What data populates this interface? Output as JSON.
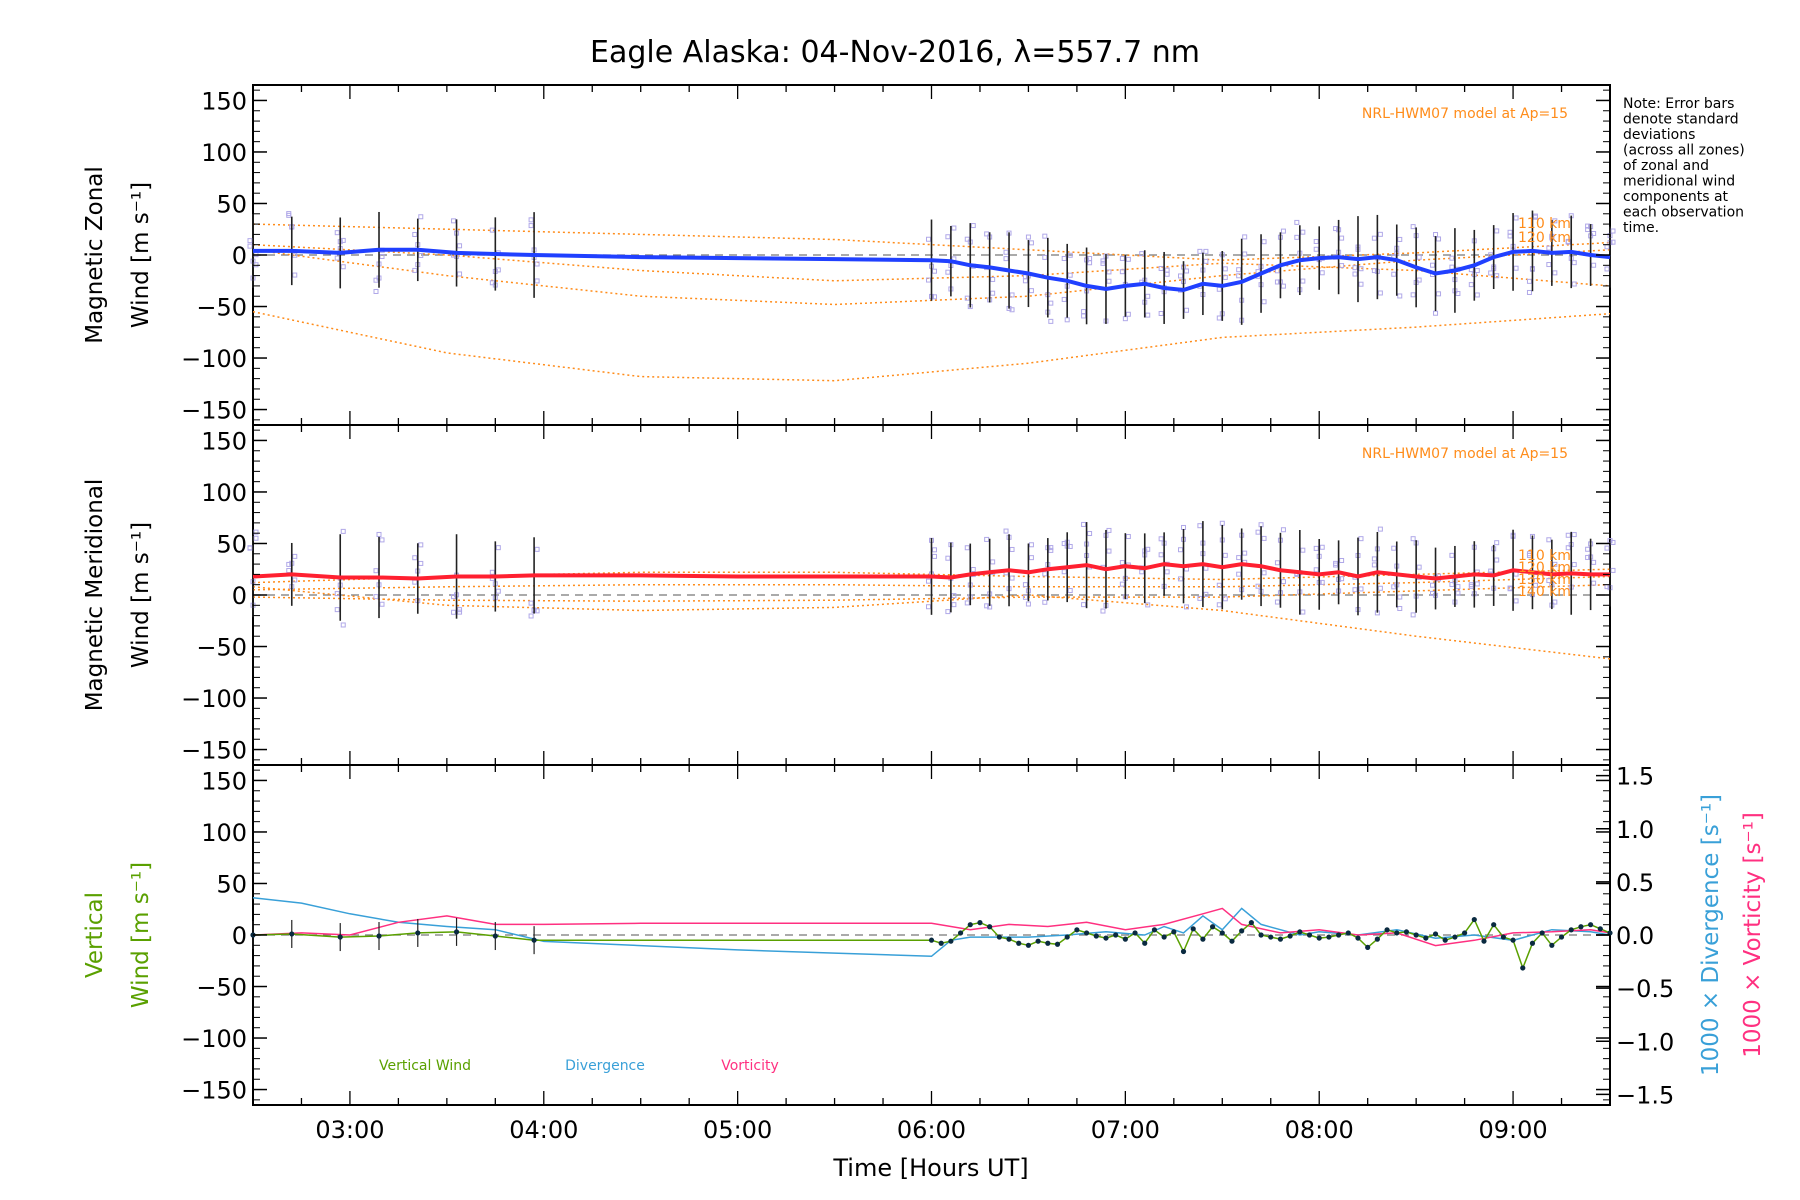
{
  "title": "Eagle Alaska: 04-Nov-2016, λ=557.7 nm",
  "note": [
    "Note: Error bars",
    "denote standard",
    "deviations",
    "(across all zones)",
    "of zonal and",
    "meridional wind",
    "components at",
    "each observation",
    "time."
  ],
  "colors": {
    "zonal": "#2040ff",
    "meridional": "#ff2030",
    "model": "#ff8c1a",
    "vertical": "#5aa000",
    "divergence": "#39a0d8",
    "vorticity": "#ff3080",
    "scatter": "#b0a8e8"
  },
  "chart_data": [
    {
      "type": "line",
      "title": "",
      "ylabel": "Magnetic Zonal",
      "ylabel2": "Wind [m s⁻¹]",
      "annotation": "NRL-HWM07 model at Ap=15",
      "model_levels": [
        "110 km",
        "120 km"
      ],
      "xlim": [
        2.5,
        9.5
      ],
      "ylim": [
        -165,
        165
      ],
      "yticks": [
        150,
        100,
        50,
        0,
        -50,
        -100,
        -150
      ],
      "series": [
        {
          "x": [
            2.5,
            2.7,
            2.95,
            3.15,
            3.35,
            3.55,
            3.75,
            3.95,
            4.5,
            5.0,
            5.5,
            6.0,
            6.1,
            6.2,
            6.3,
            6.4,
            6.5,
            6.6,
            6.7,
            6.8,
            6.9,
            7.0,
            7.1,
            7.2,
            7.3,
            7.4,
            7.5,
            7.6,
            7.7,
            7.8,
            7.9,
            8.0,
            8.1,
            8.2,
            8.3,
            8.4,
            8.5,
            8.6,
            8.7,
            8.8,
            8.9,
            9.0,
            9.1,
            9.2,
            9.3,
            9.4,
            9.5
          ],
          "values": [
            4,
            4,
            2,
            5,
            5,
            2,
            1,
            0,
            -2,
            -3,
            -4,
            -5,
            -6,
            -10,
            -12,
            -15,
            -18,
            -22,
            -25,
            -30,
            -33,
            -30,
            -28,
            -32,
            -34,
            -28,
            -30,
            -26,
            -18,
            -10,
            -5,
            -3,
            -2,
            -4,
            -2,
            -5,
            -12,
            -18,
            -15,
            -10,
            -2,
            3,
            4,
            2,
            3,
            0,
            -2
          ]
        }
      ],
      "model_curves": [
        {
          "x": [
            2.5,
            3.5,
            4.5,
            5.5,
            6.5,
            7.5,
            8.5,
            9.5
          ],
          "values": [
            30,
            25,
            20,
            15,
            5,
            -5,
            2,
            12
          ]
        },
        {
          "x": [
            2.5,
            3.5,
            4.5,
            5.5,
            6.5,
            7.5,
            8.5,
            9.5
          ],
          "values": [
            5,
            -20,
            -40,
            -48,
            -40,
            -20,
            -5,
            5
          ]
        },
        {
          "x": [
            2.5,
            3.5,
            4.5,
            5.5,
            6.5,
            7.5,
            8.5,
            9.5
          ],
          "values": [
            -55,
            -95,
            -118,
            -122,
            -105,
            -80,
            -70,
            -57
          ]
        },
        {
          "x": [
            2.5,
            3.5,
            4.5,
            5.5,
            6.5,
            7.5,
            8.5,
            9.5
          ],
          "values": [
            10,
            0,
            -15,
            -25,
            -20,
            -8,
            -15,
            -30
          ]
        }
      ]
    },
    {
      "type": "line",
      "title": "",
      "ylabel": "Magnetic Meridional",
      "ylabel2": "Wind [m s⁻¹]",
      "annotation": "NRL-HWM07 model at Ap=15",
      "model_levels": [
        "110 km",
        "120 km",
        "130 km",
        "140 km"
      ],
      "xlim": [
        2.5,
        9.5
      ],
      "ylim": [
        -165,
        165
      ],
      "yticks": [
        150,
        100,
        50,
        0,
        -50,
        -100,
        -150
      ],
      "series": [
        {
          "x": [
            2.5,
            2.7,
            2.95,
            3.15,
            3.35,
            3.55,
            3.75,
            3.95,
            4.5,
            5.0,
            5.5,
            6.0,
            6.1,
            6.2,
            6.3,
            6.4,
            6.5,
            6.6,
            6.7,
            6.8,
            6.9,
            7.0,
            7.1,
            7.2,
            7.3,
            7.4,
            7.5,
            7.6,
            7.7,
            7.8,
            7.9,
            8.0,
            8.1,
            8.2,
            8.3,
            8.4,
            8.5,
            8.6,
            8.7,
            8.8,
            8.9,
            9.0,
            9.1,
            9.2,
            9.3,
            9.4,
            9.5
          ],
          "values": [
            18,
            20,
            17,
            17,
            16,
            18,
            18,
            19,
            19,
            18,
            18,
            18,
            17,
            20,
            22,
            24,
            22,
            25,
            27,
            29,
            25,
            28,
            26,
            30,
            28,
            30,
            27,
            30,
            28,
            24,
            22,
            20,
            22,
            18,
            22,
            20,
            18,
            16,
            18,
            20,
            19,
            24,
            22,
            20,
            21,
            20,
            20
          ]
        }
      ],
      "model_curves": [
        {
          "x": [
            2.5,
            3.5,
            4.5,
            5.5,
            6.5,
            7.5,
            8.5,
            9.5
          ],
          "values": [
            12,
            18,
            22,
            22,
            18,
            15,
            20,
            25
          ]
        },
        {
          "x": [
            2.5,
            3.5,
            4.5,
            5.5,
            6.5,
            7.5,
            8.5,
            9.5
          ],
          "values": [
            5,
            8,
            10,
            10,
            8,
            8,
            12,
            18
          ]
        },
        {
          "x": [
            2.5,
            3.5,
            4.5,
            5.5,
            6.5,
            7.5,
            8.5,
            9.5
          ],
          "values": [
            -2,
            -5,
            -6,
            -5,
            -2,
            -2,
            4,
            10
          ]
        },
        {
          "x": [
            2.5,
            3.5,
            4.5,
            5.5,
            6.5,
            7.5,
            8.5,
            9.5
          ],
          "values": [
            8,
            -10,
            -15,
            -12,
            0,
            -15,
            -40,
            -62
          ]
        }
      ]
    },
    {
      "type": "line",
      "title": "",
      "ylabel": "Vertical",
      "ylabel2": "Wind [m s⁻¹]",
      "ylabel_right1": "1000 × Divergence [s⁻¹]",
      "ylabel_right2": "1000 × Vorticity [s⁻¹]",
      "xlabel": "Time [Hours UT]",
      "xticks": [
        "03:00",
        "04:00",
        "05:00",
        "06:00",
        "07:00",
        "08:00",
        "09:00"
      ],
      "xlim": [
        2.5,
        9.5
      ],
      "ylim": [
        -165,
        165
      ],
      "yticks": [
        150,
        100,
        50,
        0,
        -50,
        -100,
        -150
      ],
      "y2lim": [
        -1.6,
        1.6
      ],
      "y2ticks": [
        "1.5",
        "1.0",
        "0.5",
        "0.0",
        "−0.5",
        "−1.0",
        "−1.5"
      ],
      "legend": [
        "Vertical Wind",
        "Divergence",
        "Vorticity"
      ],
      "series": [
        {
          "name": "Vertical Wind",
          "x": [
            2.5,
            2.7,
            2.95,
            3.15,
            3.35,
            3.55,
            3.75,
            3.95,
            6.0,
            6.05,
            6.1,
            6.15,
            6.2,
            6.25,
            6.3,
            6.35,
            6.4,
            6.45,
            6.5,
            6.55,
            6.6,
            6.65,
            6.7,
            6.75,
            6.8,
            6.85,
            6.9,
            6.95,
            7.0,
            7.05,
            7.1,
            7.15,
            7.2,
            7.25,
            7.3,
            7.35,
            7.4,
            7.45,
            7.5,
            7.55,
            7.6,
            7.65,
            7.7,
            7.75,
            7.8,
            7.85,
            7.9,
            7.95,
            8.0,
            8.05,
            8.1,
            8.15,
            8.2,
            8.25,
            8.3,
            8.35,
            8.4,
            8.45,
            8.5,
            8.55,
            8.6,
            8.65,
            8.7,
            8.75,
            8.8,
            8.85,
            8.9,
            8.95,
            9.0,
            9.05,
            9.1,
            9.15,
            9.2,
            9.25,
            9.3,
            9.35,
            9.4,
            9.45,
            9.5
          ],
          "values": [
            0,
            1,
            -2,
            -1,
            2,
            3,
            -1,
            -5,
            -5,
            -8,
            -6,
            2,
            10,
            12,
            8,
            -2,
            -4,
            -8,
            -10,
            -6,
            -8,
            -9,
            -2,
            5,
            2,
            -1,
            -3,
            0,
            -4,
            2,
            -8,
            5,
            -2,
            3,
            -16,
            6,
            -4,
            8,
            2,
            -6,
            4,
            12,
            0,
            -2,
            -4,
            -1,
            3,
            0,
            -3,
            -2,
            0,
            2,
            -3,
            -12,
            -4,
            5,
            2,
            3,
            0,
            -3,
            1,
            -5,
            -2,
            2,
            15,
            -6,
            10,
            -2,
            -5,
            -32,
            -8,
            2,
            -10,
            -2,
            5,
            8,
            10,
            6,
            2
          ]
        },
        {
          "name": "Divergence",
          "x": [
            2.5,
            2.75,
            3.0,
            3.25,
            3.5,
            3.75,
            4.0,
            4.5,
            5.0,
            5.5,
            6.0,
            6.1,
            6.2,
            6.3,
            6.5,
            6.7,
            6.9,
            7.1,
            7.2,
            7.3,
            7.4,
            7.5,
            7.6,
            7.7,
            7.8,
            7.9,
            8.0,
            8.2,
            8.4,
            8.6,
            8.8,
            9.0,
            9.2,
            9.4,
            9.5
          ],
          "values": [
            0.35,
            0.3,
            0.2,
            0.12,
            0.08,
            0.05,
            -0.06,
            -0.1,
            -0.14,
            -0.17,
            -0.2,
            -0.05,
            -0.02,
            -0.02,
            -0.02,
            0.0,
            0.03,
            0.0,
            0.08,
            0.02,
            0.18,
            0.05,
            0.25,
            0.1,
            0.05,
            0.0,
            0.03,
            0.0,
            0.05,
            -0.03,
            0.0,
            -0.05,
            0.05,
            0.03,
            0.0
          ]
        },
        {
          "name": "Vorticity",
          "x": [
            2.5,
            2.75,
            3.0,
            3.25,
            3.5,
            3.75,
            4.0,
            4.5,
            5.0,
            5.5,
            6.0,
            6.2,
            6.4,
            6.6,
            6.8,
            7.0,
            7.2,
            7.4,
            7.5,
            7.6,
            7.8,
            8.0,
            8.2,
            8.4,
            8.6,
            8.8,
            9.0,
            9.2,
            9.4,
            9.5
          ],
          "values": [
            0.0,
            0.02,
            0.0,
            0.12,
            0.18,
            0.1,
            0.1,
            0.11,
            0.11,
            0.11,
            0.11,
            0.05,
            0.1,
            0.08,
            0.12,
            0.05,
            0.1,
            0.2,
            0.25,
            0.1,
            0.02,
            0.05,
            0.0,
            0.02,
            -0.1,
            -0.05,
            0.02,
            0.03,
            0.05,
            0.02
          ]
        }
      ]
    }
  ]
}
